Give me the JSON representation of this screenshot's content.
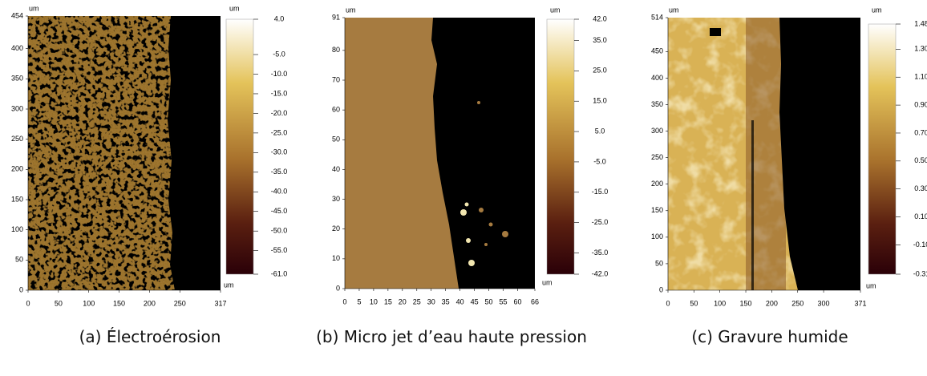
{
  "panels": [
    {
      "axis_unit": "um",
      "colorbar_unit": "um",
      "x_unit": "um",
      "x_ticks": [
        0,
        50,
        100,
        150,
        200,
        250,
        317
      ],
      "y_ticks": [
        0,
        50,
        100,
        150,
        200,
        250,
        300,
        350,
        400,
        454
      ],
      "colorbar_labels": [
        "4.0",
        "-5.0",
        "-10.0",
        "-15.0",
        "-20.0",
        "-25.0",
        "-30.0",
        "-35.0",
        "-40.0",
        "-45.0",
        "-50.0",
        "-55.0",
        "-61.0"
      ],
      "caption": "(a) Électroérosion"
    },
    {
      "axis_unit": "um",
      "colorbar_unit": "um",
      "x_unit": "um",
      "x_ticks": [
        0,
        5,
        10,
        15,
        20,
        25,
        30,
        35,
        40,
        45,
        50,
        55,
        60,
        66
      ],
      "y_ticks": [
        0,
        10,
        20,
        30,
        40,
        50,
        60,
        70,
        80,
        91
      ],
      "colorbar_labels": [
        "42.0",
        "35.0",
        "25.0",
        "15.0",
        "5.0",
        "-5.0",
        "-15.0",
        "-25.0",
        "-35.0",
        "-42.0"
      ],
      "caption": "(b) Micro jet d’eau haute pression"
    },
    {
      "axis_unit": "um",
      "colorbar_unit": "um",
      "x_unit": "um",
      "x_ticks": [
        0,
        50,
        100,
        150,
        200,
        250,
        300,
        371
      ],
      "y_ticks": [
        0,
        50,
        100,
        150,
        200,
        250,
        300,
        350,
        400,
        450,
        514
      ],
      "colorbar_labels": [
        "1.48",
        "1.30",
        "1.10",
        "0.90",
        "0.70",
        "0.50",
        "0.30",
        "0.10",
        "-0.10",
        "-0.31"
      ],
      "caption": "(c) Gravure humide"
    }
  ]
}
